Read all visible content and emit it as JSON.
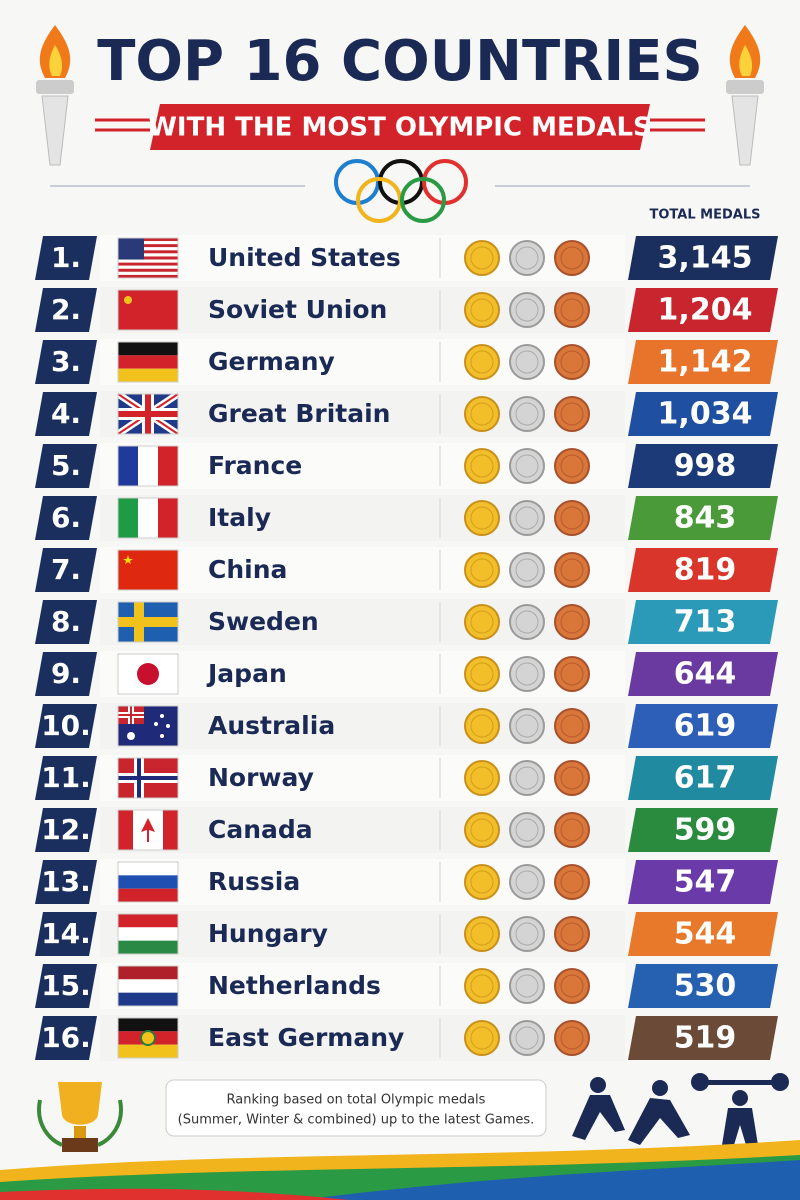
{
  "header": {
    "title": "TOP 16 COUNTRIES",
    "subtitle": "WITH THE MOST OLYMPIC MEDALS"
  },
  "table": {
    "column_header": "TOTAL MEDALS",
    "rows": [
      {
        "rank": "1.",
        "country": "United States",
        "total": "3,145"
      },
      {
        "rank": "2.",
        "country": "Soviet Union",
        "total": "1,204"
      },
      {
        "rank": "3.",
        "country": "Germany",
        "total": "1,142"
      },
      {
        "rank": "4.",
        "country": "Great Britain",
        "total": "1,034"
      },
      {
        "rank": "5.",
        "country": "France",
        "total": "998"
      },
      {
        "rank": "6.",
        "country": "Italy",
        "total": "843"
      },
      {
        "rank": "7.",
        "country": "China",
        "total": "819"
      },
      {
        "rank": "8.",
        "country": "Sweden",
        "total": "713"
      },
      {
        "rank": "9.",
        "country": "Japan",
        "total": "644"
      },
      {
        "rank": "10.",
        "country": "Australia",
        "total": "619"
      },
      {
        "rank": "11.",
        "country": "Norway",
        "total": "617"
      },
      {
        "rank": "12.",
        "country": "Canada",
        "total": "599"
      },
      {
        "rank": "13.",
        "country": "Russia",
        "total": "547"
      },
      {
        "rank": "14.",
        "country": "Hungary",
        "total": "544"
      },
      {
        "rank": "15.",
        "country": "Netherlands",
        "total": "530"
      },
      {
        "rank": "16.",
        "country": "East Germany",
        "total": "519"
      }
    ]
  },
  "footer": {
    "lines": [
      "Ranking based on total Olympic medals",
      "(Summer, Winter & combined) up to the latest Games."
    ]
  }
}
